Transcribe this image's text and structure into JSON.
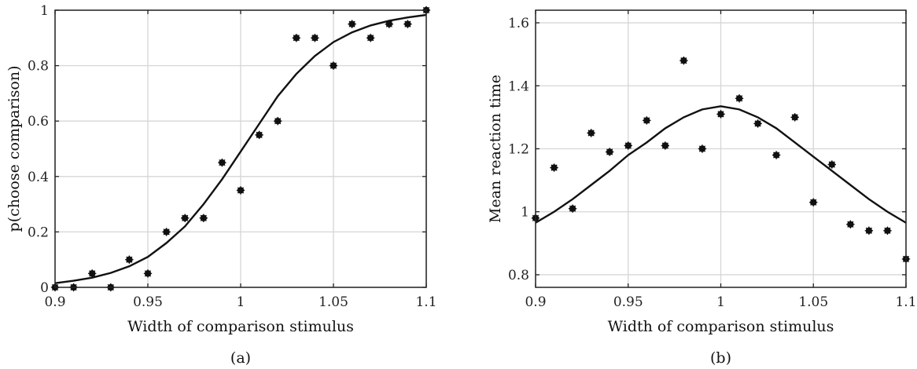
{
  "chart_data": [
    {
      "type": "scatter",
      "caption": "(a)",
      "xlabel": "Width of comparison stimulus",
      "ylabel": "p(choose comparison)",
      "xlim": [
        0.9,
        1.1
      ],
      "ylim": [
        0,
        1
      ],
      "xticks": [
        0.9,
        0.95,
        1,
        1.05,
        1.1
      ],
      "xtick_labels": [
        "0.9",
        "0.95",
        "1",
        "1.05",
        "1.1"
      ],
      "yticks": [
        0,
        0.2,
        0.4,
        0.6,
        0.8,
        1
      ],
      "ytick_labels": [
        "0",
        "0.2",
        "0.4",
        "0.6",
        "0.8",
        "1"
      ],
      "grid": true,
      "series": [
        {
          "kind": "points",
          "x": [
            0.9,
            0.91,
            0.92,
            0.93,
            0.94,
            0.95,
            0.96,
            0.97,
            0.98,
            0.99,
            1.0,
            1.01,
            1.02,
            1.03,
            1.04,
            1.05,
            1.06,
            1.07,
            1.08,
            1.09,
            1.1
          ],
          "y": [
            0,
            0,
            0.05,
            0,
            0.1,
            0.05,
            0.2,
            0.25,
            0.25,
            0.45,
            0.35,
            0.55,
            0.6,
            0.9,
            0.9,
            0.8,
            0.95,
            0.9,
            0.95,
            0.95,
            1.0
          ]
        },
        {
          "kind": "curve",
          "x": [
            0.9,
            0.91,
            0.92,
            0.93,
            0.94,
            0.95,
            0.96,
            0.97,
            0.98,
            0.99,
            1.0,
            1.01,
            1.02,
            1.03,
            1.04,
            1.05,
            1.06,
            1.07,
            1.08,
            1.09,
            1.1
          ],
          "y": [
            0.015,
            0.024,
            0.035,
            0.052,
            0.076,
            0.11,
            0.16,
            0.22,
            0.3,
            0.39,
            0.49,
            0.59,
            0.69,
            0.77,
            0.835,
            0.885,
            0.92,
            0.945,
            0.962,
            0.974,
            0.983
          ]
        }
      ]
    },
    {
      "type": "scatter",
      "caption": "(b)",
      "xlabel": "Width of comparison stimulus",
      "ylabel": "Mean reaction time",
      "xlim": [
        0.9,
        1.1
      ],
      "ylim": [
        0.76,
        1.64
      ],
      "xticks": [
        0.9,
        0.95,
        1,
        1.05,
        1.1
      ],
      "xtick_labels": [
        "0.9",
        "0.95",
        "1",
        "1.05",
        "1.1"
      ],
      "yticks": [
        0.8,
        1,
        1.2,
        1.4,
        1.6
      ],
      "ytick_labels": [
        "0.8",
        "1",
        "1.2",
        "1.4",
        "1.6"
      ],
      "grid": true,
      "series": [
        {
          "kind": "points",
          "x": [
            0.9,
            0.91,
            0.92,
            0.93,
            0.94,
            0.95,
            0.96,
            0.97,
            0.98,
            0.99,
            1.0,
            1.01,
            1.02,
            1.03,
            1.04,
            1.05,
            1.06,
            1.07,
            1.08,
            1.09,
            1.1
          ],
          "y": [
            0.98,
            1.14,
            1.01,
            1.25,
            1.19,
            1.21,
            1.29,
            1.21,
            1.48,
            1.2,
            1.31,
            1.36,
            1.28,
            1.18,
            1.3,
            1.03,
            1.15,
            0.96,
            0.94,
            0.94,
            0.85
          ]
        },
        {
          "kind": "curve",
          "x": [
            0.9,
            0.91,
            0.92,
            0.93,
            0.94,
            0.95,
            0.96,
            0.97,
            0.98,
            0.99,
            1.0,
            1.01,
            1.02,
            1.03,
            1.04,
            1.05,
            1.06,
            1.07,
            1.08,
            1.09,
            1.1
          ],
          "y": [
            0.965,
            1.0,
            1.04,
            1.085,
            1.13,
            1.18,
            1.22,
            1.265,
            1.3,
            1.325,
            1.335,
            1.325,
            1.3,
            1.265,
            1.22,
            1.175,
            1.13,
            1.085,
            1.04,
            1.0,
            0.965
          ]
        }
      ]
    }
  ]
}
